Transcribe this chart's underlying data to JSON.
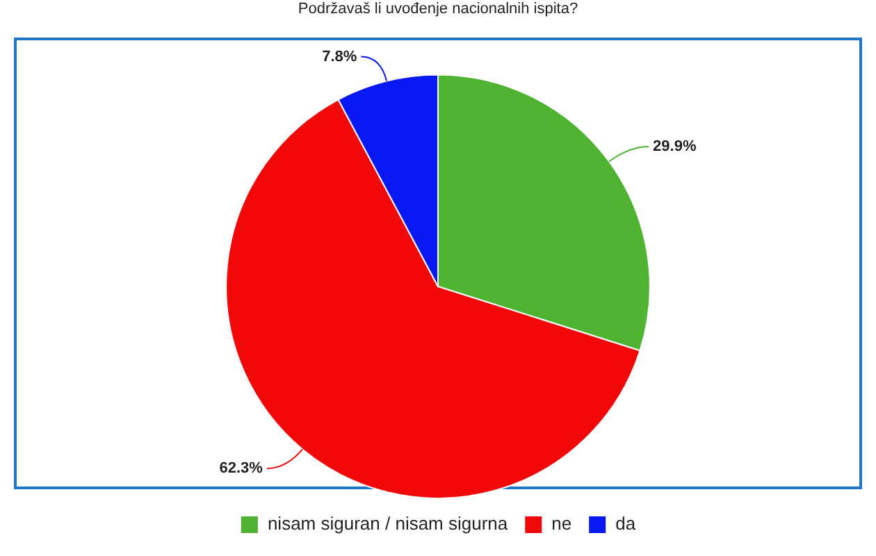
{
  "chart_data": {
    "type": "pie",
    "title": "Podržavaš li uvođenje nacionalnih ispita?",
    "categories": [
      "nisam siguran / nisam sigurna",
      "ne",
      "da"
    ],
    "values": [
      29.9,
      62.3,
      7.8
    ],
    "colors": [
      "#4db330",
      "#f20808",
      "#0818f2"
    ],
    "value_labels": [
      "29.9%",
      "62.3%",
      "7.8%"
    ],
    "legend": "bottom"
  }
}
